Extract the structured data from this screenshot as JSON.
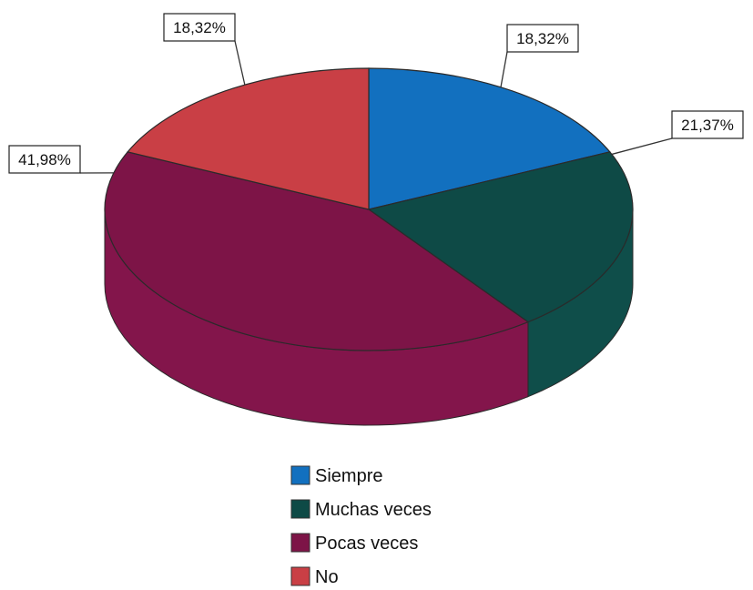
{
  "chart_data": {
    "type": "pie",
    "style": "3d",
    "categories": [
      "Siempre",
      "Muchas veces",
      "Pocas veces",
      "No"
    ],
    "values": [
      18.32,
      21.37,
      41.98,
      18.32
    ],
    "labels": [
      "18,32%",
      "21,37%",
      "41,98%",
      "18,32%"
    ],
    "colors": [
      "#1270BF",
      "#0E4A46",
      "#7D1447",
      "#C93F45"
    ],
    "legend_position": "bottom",
    "title": ""
  }
}
